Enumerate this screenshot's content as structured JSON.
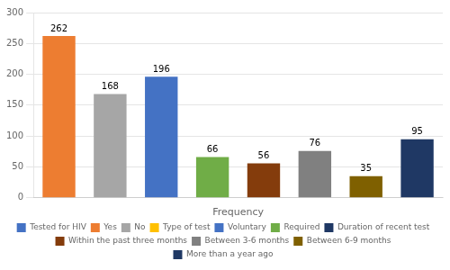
{
  "chart_data": {
    "type": "bar",
    "xlabel": "Frequency",
    "categories": [
      null,
      null,
      null,
      null,
      null,
      null,
      null,
      null
    ],
    "series": [
      {
        "name": "Tested for HIV",
        "color": "#4472C4",
        "values": [
          null,
          null,
          null,
          null,
          null,
          null,
          null,
          null
        ]
      },
      {
        "name": "Yes",
        "color": "#ED7D31",
        "values": [
          262,
          null,
          null,
          null,
          null,
          null,
          null,
          null
        ]
      },
      {
        "name": "No",
        "color": "#A6A6A6",
        "values": [
          null,
          168,
          null,
          null,
          null,
          null,
          null,
          null
        ]
      },
      {
        "name": "Type of test",
        "color": "#FFC000",
        "values": [
          null,
          null,
          null,
          null,
          null,
          null,
          null,
          null
        ]
      },
      {
        "name": "Voluntary",
        "color": "#4472C4",
        "values": [
          null,
          null,
          196,
          null,
          null,
          null,
          null,
          null
        ]
      },
      {
        "name": "Required",
        "color": "#70AD47",
        "values": [
          null,
          null,
          null,
          66,
          null,
          null,
          null,
          null
        ]
      },
      {
        "name": "Duration of recent test",
        "color": "#1F3864",
        "values": [
          null,
          null,
          null,
          null,
          null,
          null,
          null,
          null
        ]
      },
      {
        "name": "Within the past three months",
        "color": "#843C0C",
        "values": [
          null,
          null,
          null,
          null,
          56,
          null,
          null,
          null
        ]
      },
      {
        "name": "Between 3-6 months",
        "color": "#808080",
        "values": [
          null,
          null,
          null,
          null,
          null,
          76,
          null,
          null
        ]
      },
      {
        "name": "Between 6-9 months",
        "color": "#7F6000",
        "values": [
          null,
          null,
          null,
          null,
          null,
          null,
          35,
          null
        ]
      },
      {
        "name": "More than a year ago",
        "color": "#1F3864",
        "values": [
          null,
          null,
          null,
          null,
          null,
          null,
          null,
          95
        ]
      }
    ],
    "ylim": [
      0,
      300
    ],
    "yticks": [
      0,
      50,
      100,
      150,
      200,
      250,
      300
    ],
    "grid": true,
    "legend": "bottom",
    "data_labels": true,
    "tick_labels": "y"
  }
}
